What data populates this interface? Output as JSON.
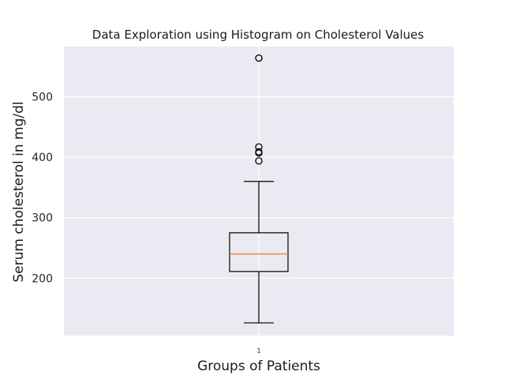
{
  "chart_data": {
    "type": "boxplot",
    "title": "Data Exploration using Histogram on Cholesterol Values",
    "xlabel": "Groups of Patients",
    "ylabel": "Serum cholesterol in mg/dl",
    "ylim": [
      105,
      583
    ],
    "yticks": [
      200,
      300,
      400,
      500
    ],
    "categories": [
      "1"
    ],
    "boxes": [
      {
        "category": "1",
        "whisker_low": 126,
        "q1": 211,
        "median": 240,
        "q3": 275,
        "whisker_high": 360,
        "outliers": [
          394,
          407,
          409,
          417,
          564
        ]
      }
    ],
    "grid": true,
    "colors": {
      "background": "#eaeaf2",
      "grid": "#ffffff",
      "box": "#000000",
      "median": "#e8874c"
    }
  }
}
